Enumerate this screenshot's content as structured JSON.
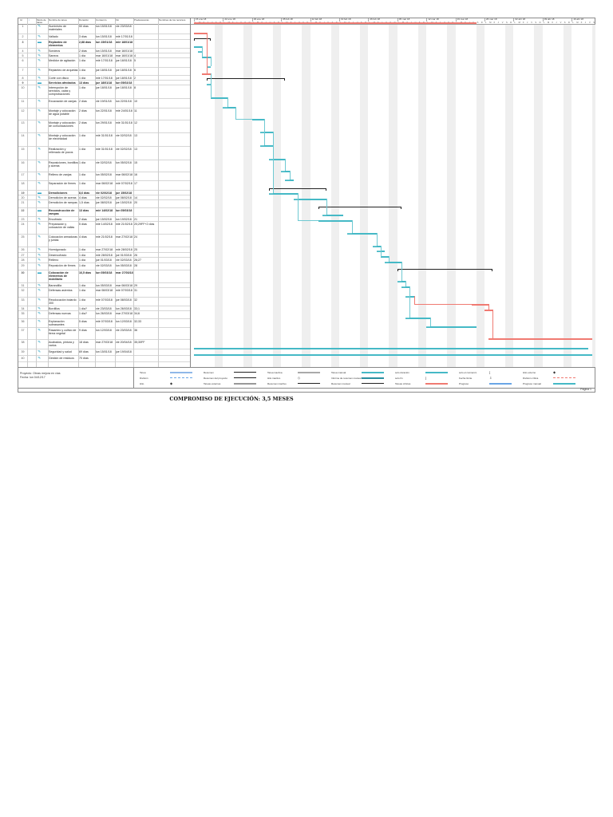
{
  "headers": {
    "id": "Id",
    "info": "i",
    "mode": "Modo de tarea",
    "name": "Nombre de tarea",
    "duration": "Duración",
    "start": "Comienzo",
    "end": "Fin",
    "pred": "Predecesoras",
    "resources": "Nombres de los recursos"
  },
  "timeline": {
    "weeks": [
      "15 ene 18",
      "22 ene 18",
      "29 ene 18",
      "05 feb 18",
      "12 feb 18",
      "19 feb 18",
      "26 feb 18",
      "05 mar 18",
      "12 mar 18",
      "19 mar 18",
      "26 mar 18",
      "02 abr 18",
      "09 abr 18",
      "16 abr 18"
    ],
    "day_letters": [
      "L",
      "M",
      "X",
      "J",
      "V",
      "S",
      "D"
    ]
  },
  "tasks": [
    {
      "id": "1",
      "name": "Suministro de materiales",
      "dur": "50 días",
      "start": "lun 15/01/18",
      "end": "vie 23/03/18",
      "pred": "",
      "type": "critical"
    },
    {
      "id": "2",
      "name": "Vallado",
      "dur": "3 días",
      "start": "lun 15/01/18",
      "end": "mié 17/01/18",
      "pred": "",
      "type": "critical"
    },
    {
      "id": "3",
      "name": "Replanteo de elementos",
      "dur": "2,88 días",
      "start": "lun 15/01/18",
      "end": "mié 18/01/18",
      "pred": "",
      "type": "summary",
      "summary": true
    },
    {
      "id": "4",
      "name": "Sondeos",
      "dur": "2 días",
      "start": "lun 15/01/18",
      "end": "mar 16/01/18",
      "pred": "",
      "type": "normal"
    },
    {
      "id": "5",
      "name": "Saneos",
      "dur": "1 día",
      "start": "mar 16/01/18",
      "end": "mar 16/01/18",
      "pred": "4",
      "type": "normal"
    },
    {
      "id": "6",
      "name": "Medidor de agitación",
      "dur": "1 día",
      "start": "mié 17/01/18",
      "end": "jue 18/01/18",
      "pred": "5",
      "type": "normal"
    },
    {
      "id": "7",
      "name": "Replanteo de arquetas",
      "dur": "1 día",
      "start": "jue 18/01/18",
      "end": "jue 18/01/18",
      "pred": "6",
      "type": "normal"
    },
    {
      "id": "8",
      "name": "Corte con disco",
      "dur": "1 día",
      "start": "mié 17/01/18",
      "end": "jue 18/01/18",
      "pred": "2",
      "type": "critical"
    },
    {
      "id": "9",
      "name": "Servicios afectados",
      "dur": "13 días",
      "start": "jue 18/01/18",
      "end": "lun 05/02/18",
      "pred": "",
      "type": "summary",
      "summary": true
    },
    {
      "id": "10",
      "name": "Interrupción de servicios, calas y comprobaciones",
      "dur": "1 día",
      "start": "jue 18/01/18",
      "end": "jue 18/01/18",
      "pred": "8",
      "type": "normal"
    },
    {
      "id": "11",
      "name": "Excavación de zanjas",
      "dur": "2 días",
      "start": "vie 19/01/18",
      "end": "lun 22/01/18",
      "pred": "10",
      "type": "normal"
    },
    {
      "id": "12",
      "name": "Montaje y colocación de agua potable",
      "dur": "2 días",
      "start": "lun 22/01/18",
      "end": "mié 24/01/18",
      "pred": "11",
      "type": "normal"
    },
    {
      "id": "13",
      "name": "Montaje y colocación de comunicaciones",
      "dur": "2 días",
      "start": "lun 29/01/18",
      "end": "mié 31/01/18",
      "pred": "12",
      "type": "normal"
    },
    {
      "id": "14",
      "name": "Montaje y colocación de electricidad",
      "dur": "1 día",
      "start": "mié 31/01/18",
      "end": "vie 02/02/18",
      "pred": "13",
      "type": "normal"
    },
    {
      "id": "15",
      "name": "Realización y rellenado de pozos",
      "dur": "1 día",
      "start": "mié 31/01/18",
      "end": "vie 02/02/18",
      "pred": "13",
      "type": "normal"
    },
    {
      "id": "16",
      "name": "Reposiciones, bordillos y aceras",
      "dur": "1 día",
      "start": "vie 02/02/18",
      "end": "lun 05/02/18",
      "pred": "15",
      "type": "normal"
    },
    {
      "id": "17",
      "name": "Relleno de zanjas",
      "dur": "1 día",
      "start": "lun 05/02/18",
      "end": "mar 06/02/18",
      "pred": "16",
      "type": "normal"
    },
    {
      "id": "18",
      "name": "Separación de firmes",
      "dur": "1 día",
      "start": "mar 06/02/18",
      "end": "mié 07/02/18",
      "pred": "17",
      "type": "normal"
    },
    {
      "id": "19",
      "name": "Demoliciones",
      "dur": "8,6 días",
      "start": "vie 02/02/18",
      "end": "jue 15/02/18",
      "pred": "",
      "type": "summary",
      "summary": true
    },
    {
      "id": "20",
      "name": "Demolición de aceras",
      "dur": "4 días",
      "start": "vie 02/02/18",
      "end": "jue 08/02/18",
      "pred": "14",
      "type": "normal"
    },
    {
      "id": "21",
      "name": "Demolición de rampas",
      "dur": "1,5 días",
      "start": "jue 08/02/18",
      "end": "jue 15/02/18",
      "pred": "20",
      "type": "normal"
    },
    {
      "id": "22",
      "name": "Reconstrucción de rampas",
      "dur": "13 días",
      "start": "mié 14/02/18",
      "end": "lun 05/03/18",
      "pred": "",
      "type": "summary",
      "summary": true
    },
    {
      "id": "23",
      "name": "Encofrado",
      "dur": "2 días",
      "start": "jue 15/02/18",
      "end": "lun 19/02/18",
      "pred": "21",
      "type": "normal"
    },
    {
      "id": "24",
      "name": "Preparación y colocación de vallas",
      "dur": "5 días",
      "start": "mié 14/02/18",
      "end": "mié 21/02/18",
      "pred": "20;29FF+2 días",
      "type": "normal"
    },
    {
      "id": "25",
      "name": "Colocación armaduras y juntas",
      "dur": "4 días",
      "start": "mié 21/02/18",
      "end": "mar 27/02/18",
      "pred": "24",
      "type": "normal"
    },
    {
      "id": "26",
      "name": "Hormigonado",
      "dur": "1 día",
      "start": "mar 27/02/18",
      "end": "mié 28/02/18",
      "pred": "25",
      "type": "normal"
    },
    {
      "id": "27",
      "name": "Desencofrado",
      "dur": "1 día",
      "start": "mié 28/02/18",
      "end": "jue 01/03/18",
      "pred": "26",
      "type": "normal"
    },
    {
      "id": "28",
      "name": "Relleno",
      "dur": "1 día",
      "start": "jue 01/03/18",
      "end": "vie 02/03/18",
      "pred": "26;27",
      "type": "normal"
    },
    {
      "id": "29",
      "name": "Reposición de firmes",
      "dur": "1 día",
      "start": "vie 02/03/18",
      "end": "lun 05/03/18",
      "pred": "28",
      "type": "normal"
    },
    {
      "id": "30",
      "name": "Colocación de elementos de mobiliario",
      "dur": "16,5 días",
      "start": "lun 05/03/18",
      "end": "mar 27/03/18",
      "pred": "",
      "type": "summary",
      "summary": true
    },
    {
      "id": "31",
      "name": "Barandilla",
      "dur": "1 día",
      "start": "lun 05/03/18",
      "end": "mar 06/03/18",
      "pred": "29",
      "type": "normal"
    },
    {
      "id": "32",
      "name": "Defensas asientos",
      "dur": "1 día",
      "start": "mar 06/03/18",
      "end": "mié 07/03/18",
      "pred": "31",
      "type": "normal"
    },
    {
      "id": "33",
      "name": "Recolocación bolardo 300",
      "dur": "1 día",
      "start": "mié 07/03/18",
      "end": "jue 08/03/18",
      "pred": "32",
      "type": "normal"
    },
    {
      "id": "34",
      "name": "Bordillos",
      "dur": "1 día?",
      "start": "vie 23/03/18",
      "end": "lun 26/03/18",
      "pred": "33;1",
      "type": "critical"
    },
    {
      "id": "35",
      "name": "Defensas nuevas",
      "dur": "1 día?",
      "start": "lun 26/03/18",
      "end": "mar 27/03/18",
      "pred": "34;6",
      "type": "critical"
    },
    {
      "id": "36",
      "name": "Explanación subrasantes",
      "dur": "5 días",
      "start": "mié 07/03/18",
      "end": "lun 12/03/18",
      "pred": "32;33",
      "type": "normal"
    },
    {
      "id": "37",
      "name": "Rasanteo y cultivo de tierra vegetal",
      "dur": "9 días",
      "start": "lun 12/03/18",
      "end": "vie 23/03/18",
      "pred": "36",
      "type": "normal"
    },
    {
      "id": "38",
      "name": "Acabados, pintura y varios",
      "dur": "18 días",
      "start": "mar 27/03/18",
      "end": "vie 20/04/18",
      "pred": "35;30FF",
      "type": "critical"
    },
    {
      "id": "39",
      "name": "Seguridad y salud",
      "dur": "69 días",
      "start": "lun 15/01/18",
      "end": "jue 19/04/18",
      "pred": "",
      "type": "normal"
    },
    {
      "id": "40",
      "name": "Gestión de residuos",
      "dur": "70 días",
      "start": "",
      "end": "",
      "pred": "",
      "type": "normal"
    }
  ],
  "legend": {
    "project": "Proyecto: Obras mejora en vías",
    "date": "Fecha: lun 04/12/17",
    "items": [
      "Tarea",
      "División",
      "Hito",
      "Resumen",
      "Resumen del proyecto",
      "Tareas externas",
      "Tarea inactiva",
      "Hito inactivo",
      "Resumen inactivo",
      "Tarea manual",
      "Informe de resumen manual",
      "Resumen manual",
      "solo duración",
      "solo fin",
      "Tareas críticas",
      "solo el comienzo",
      "Fecha límite",
      "Progreso",
      "Hito externo",
      "División crítica",
      "Progreso manual"
    ]
  },
  "footer": {
    "page": "Página 1"
  },
  "title": "COMPROMISO DE EJECUCIÓN: 3,5 MESES",
  "colors": {
    "normal": "#45b9c6",
    "critical": "#f07a72",
    "summary": "#222222"
  }
}
